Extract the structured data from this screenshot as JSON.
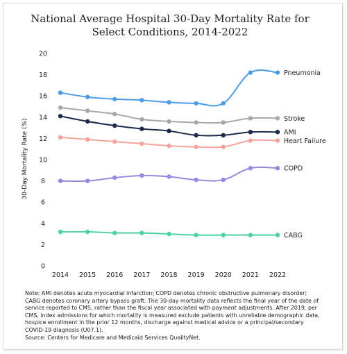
{
  "chart_data": {
    "type": "line",
    "title": "National Average Hospital 30-Day Mortality Rate for Select Conditions, 2014-2022",
    "ylabel": "30-Day Mortality Rate (%)",
    "xlabel": "",
    "x": [
      "2014",
      "2015",
      "2016",
      "2017",
      "2018",
      "2019",
      "2020",
      "2021",
      "2022"
    ],
    "ylim": [
      0,
      20
    ],
    "yticks": [
      0,
      2,
      4,
      6,
      8,
      10,
      12,
      14,
      16,
      18,
      20
    ],
    "grid": false,
    "series": [
      {
        "name": "Pneumonia",
        "color": "#4a9be8",
        "values": [
          16.3,
          15.9,
          15.7,
          15.6,
          15.4,
          15.3,
          15.3,
          18.2,
          18.2
        ]
      },
      {
        "name": "Stroke",
        "color": "#a8a8a8",
        "values": [
          14.9,
          14.6,
          14.3,
          13.8,
          13.6,
          13.5,
          13.5,
          13.9,
          13.9
        ]
      },
      {
        "name": "AMI",
        "color": "#1a2b4c",
        "values": [
          14.1,
          13.6,
          13.2,
          12.9,
          12.7,
          12.3,
          12.3,
          12.6,
          12.6
        ]
      },
      {
        "name": "Heart Failure",
        "color": "#f4a49a",
        "values": [
          12.1,
          11.9,
          11.7,
          11.5,
          11.3,
          11.2,
          11.2,
          11.8,
          11.8
        ]
      },
      {
        "name": "COPD",
        "color": "#9b86e0",
        "values": [
          8.0,
          8.0,
          8.3,
          8.5,
          8.4,
          8.1,
          8.1,
          9.2,
          9.2
        ]
      },
      {
        "name": "CABG",
        "color": "#4fd1a5",
        "values": [
          3.2,
          3.2,
          3.1,
          3.1,
          3.0,
          2.9,
          2.9,
          2.9,
          2.9
        ]
      }
    ]
  },
  "note": {
    "text": "Note: AMI denotes acute myocardial infarction; COPD denotes chronic obstructive pulmonary disorder; CABG denotes coronary artery bypass graft. The 30-day mortality data reflects the final year of the date of service reported to CMS, rather than the fiscal year associated with payment adjustments. After 2019, per CMS, index admissions for which mortality is measured exclude patients with unreliable demographic data, hospice enrollment in the prior 12 months, discharge against medical advice or a principal/secondary COVID-19 diagnosis (U07.1).",
    "source": "Source: Centers for Medicare and Medicaid Services QualityNet."
  }
}
